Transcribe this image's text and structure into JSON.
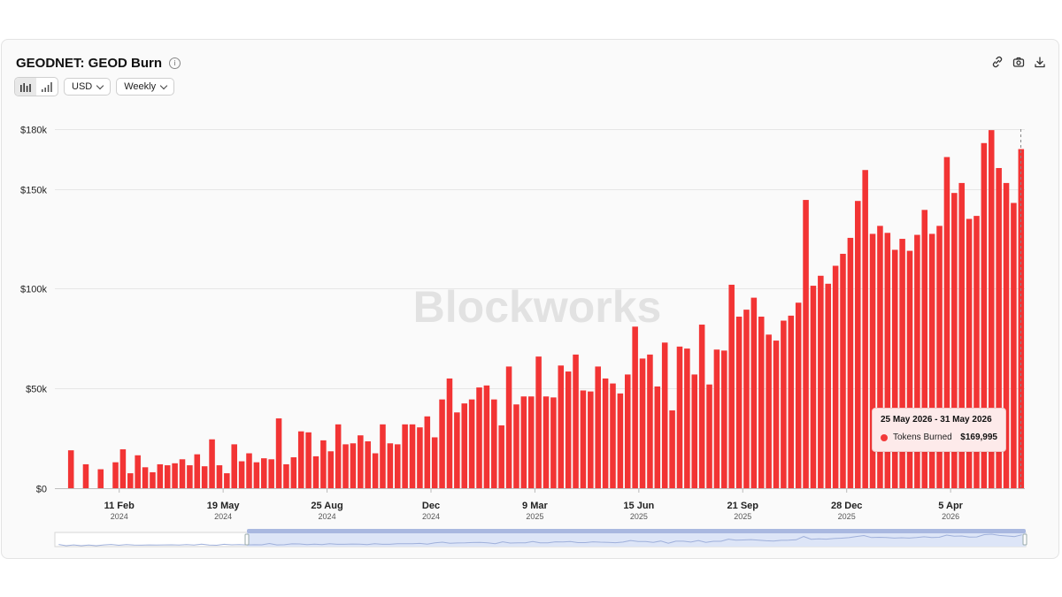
{
  "header": {
    "title": "GEODNET: GEOD Burn"
  },
  "controls": {
    "currency": "USD",
    "interval": "Weekly"
  },
  "watermark": "Blockworks",
  "colors": {
    "bar": "#f23434",
    "grid": "#e6e6e6",
    "tooltip_bg": "#fdeaea"
  },
  "tooltip": {
    "date_range": "25 May 2026 - 31 May 2026",
    "series": "Tokens Burned",
    "value": "$169,995"
  },
  "chart_data": {
    "type": "bar",
    "title": "GEODNET: GEOD Burn",
    "series": [
      {
        "name": "Tokens Burned",
        "values": [
          19000,
          0,
          12000,
          0,
          9500,
          0,
          13000,
          19500,
          7500,
          16500,
          10500,
          8000,
          12000,
          11500,
          12500,
          14500,
          11500,
          17000,
          11000,
          24500,
          11500,
          7500,
          22000,
          13500,
          17500,
          13000,
          15000,
          14500,
          35000,
          12000,
          15500,
          28500,
          28000,
          16000,
          24000,
          18500,
          32000,
          22000,
          22500,
          26500,
          23500,
          17500,
          32000,
          22500,
          22000,
          32000,
          32000,
          30500,
          36000,
          25500,
          44500,
          55000,
          38000,
          42500,
          44500,
          50500,
          51500,
          44500,
          31500,
          61000,
          42000,
          46000,
          46000,
          66000,
          46000,
          45500,
          61500,
          58500,
          67000,
          49000,
          48500,
          61000,
          55000,
          52500,
          47500,
          57000,
          81000,
          65000,
          67000,
          51000,
          73000,
          39000,
          71000,
          70000,
          57000,
          82000,
          52000,
          69500,
          69000,
          102000,
          86000,
          89500,
          95500,
          86000,
          77000,
          74000,
          84000,
          86500,
          93000,
          144500,
          101500,
          106500,
          102500,
          111500,
          117500,
          125500,
          144000,
          159500,
          127500,
          131500,
          128000,
          119500,
          125000,
          119000,
          127000,
          139500,
          127500,
          131500,
          166000,
          148000,
          153000,
          135000,
          136500,
          173000,
          179500,
          160500,
          153000,
          143000,
          169995
        ]
      }
    ],
    "yticks": [
      "$0",
      "$50k",
      "$100k",
      "$150k",
      "$180k"
    ],
    "ytick_values": [
      0,
      50000,
      100000,
      150000,
      180000
    ],
    "ylim": [
      0,
      180000
    ],
    "xticks": [
      {
        "label": "11 Feb",
        "year": "2024",
        "index": 6.5
      },
      {
        "label": "19 May",
        "year": "2024",
        "index": 20.5
      },
      {
        "label": "25 Aug",
        "year": "2024",
        "index": 34.5
      },
      {
        "label": "Dec",
        "year": "2024",
        "index": 48.5
      },
      {
        "label": "9 Mar",
        "year": "2025",
        "index": 62.5
      },
      {
        "label": "15 Jun",
        "year": "2025",
        "index": 76.5
      },
      {
        "label": "21 Sep",
        "year": "2025",
        "index": 90.5
      },
      {
        "label": "28 Dec",
        "year": "2025",
        "index": 104.5
      },
      {
        "label": "5 Apr",
        "year": "2026",
        "index": 118.5
      }
    ],
    "grid": true,
    "legend": "none"
  }
}
